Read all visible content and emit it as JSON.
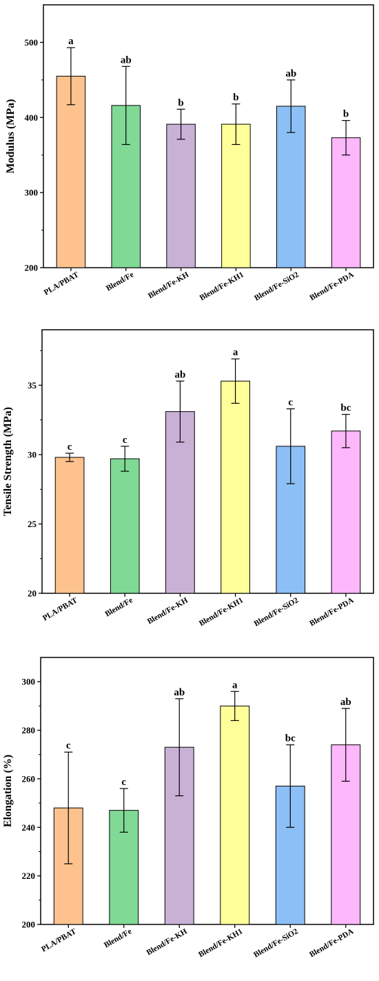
{
  "chart_data": [
    {
      "type": "bar",
      "ylabel": "Modulus (MPa)",
      "ylim": [
        200,
        550
      ],
      "yticks": [
        200,
        300,
        400,
        500
      ],
      "categories": [
        "PLA/PBAT",
        "Blend/Fe",
        "Blend/Fe-KH",
        "Blend/Fe-KH1",
        "Blend/Fe-SiO2",
        "Blend/Fe-PDA"
      ],
      "values": [
        455,
        416,
        391,
        391,
        415,
        373
      ],
      "errors": [
        38,
        52,
        20,
        27,
        35,
        23
      ],
      "significance": [
        "a",
        "ab",
        "b",
        "b",
        "ab",
        "b"
      ],
      "colors": [
        "#FDC28D",
        "#80D995",
        "#C9B1D6",
        "#FFFF9A",
        "#8CBFF5",
        "#FDB7FB"
      ]
    },
    {
      "type": "bar",
      "ylabel": "Tensile Strength (MPa)",
      "ylim": [
        20,
        39
      ],
      "yticks": [
        20,
        25,
        30,
        35
      ],
      "categories": [
        "PLA/PBAT",
        "Blend/Fe",
        "Blend/Fe-KH",
        "Blend/Fe-KH1",
        "Blend/Fe-SiO2",
        "Blend/Fe-PDA"
      ],
      "values": [
        29.8,
        29.7,
        33.1,
        35.3,
        30.6,
        31.7
      ],
      "errors": [
        0.3,
        0.9,
        2.2,
        1.6,
        2.7,
        1.2
      ],
      "significance": [
        "c",
        "c",
        "ab",
        "a",
        "c",
        "bc"
      ],
      "colors": [
        "#FDC28D",
        "#80D995",
        "#C9B1D6",
        "#FFFF9A",
        "#8CBFF5",
        "#FDB7FB"
      ]
    },
    {
      "type": "bar",
      "ylabel": "Elongation (%)",
      "ylim": [
        200,
        310
      ],
      "yticks": [
        200,
        220,
        240,
        260,
        280,
        300
      ],
      "categories": [
        "PLA/PBAT",
        "Blend/Fe",
        "Blend/Fe-KH",
        "Blend/Fe-KH1",
        "Blend/Fe-SiO2",
        "Blend/Fe-PDA"
      ],
      "values": [
        248,
        247,
        273,
        290,
        257,
        274
      ],
      "errors": [
        23,
        9,
        20,
        6,
        17,
        15
      ],
      "significance": [
        "c",
        "c",
        "ab",
        "a",
        "bc",
        "ab"
      ],
      "colors": [
        "#FDC28D",
        "#80D995",
        "#C9B1D6",
        "#FFFF9A",
        "#8CBFF5",
        "#FDB7FB"
      ]
    }
  ]
}
